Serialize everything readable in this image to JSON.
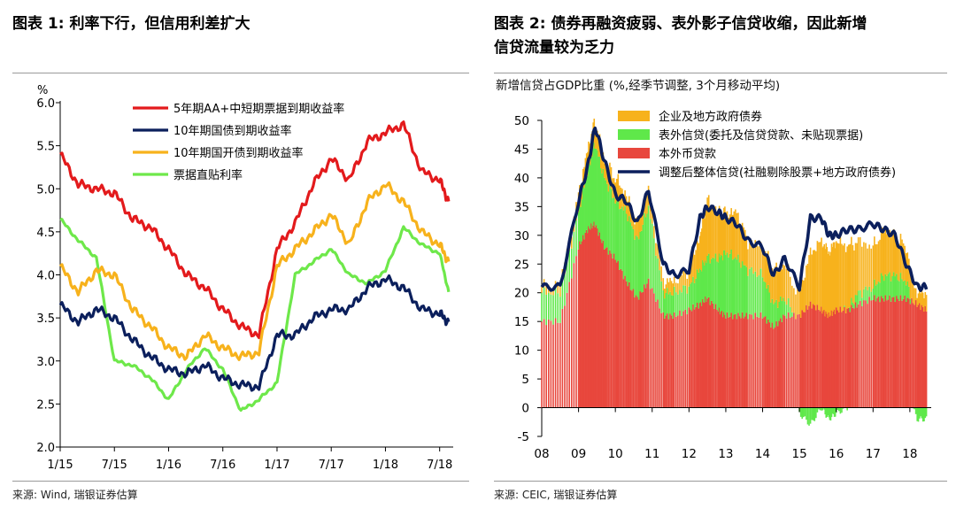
{
  "colors": {
    "red": "#e31a1c",
    "navy": "#0b1f5c",
    "orange": "#f7b21c",
    "green": "#6ee84a",
    "green_bar": "#5fe84a",
    "red_bar": "#e8473d"
  },
  "left": {
    "title": "图表 1: 利率下行，但信用利差扩大",
    "source": "来源: Wind, 瑞银证券估算",
    "chart_data": {
      "type": "line",
      "unit_label": "%",
      "ylim": [
        2.0,
        6.0
      ],
      "yticks": [
        "6.0",
        "5.5",
        "5.0",
        "4.5",
        "4.0",
        "3.5",
        "3.0",
        "2.5",
        "2.0"
      ],
      "xticks": [
        "1/15",
        "7/15",
        "1/16",
        "7/16",
        "1/17",
        "7/17",
        "1/18",
        "7/18"
      ],
      "x_months": [
        "2015-01",
        "2015-03",
        "2015-05",
        "2015-07",
        "2015-09",
        "2015-11",
        "2016-01",
        "2016-03",
        "2016-05",
        "2016-07",
        "2016-09",
        "2016-11",
        "2017-01",
        "2017-03",
        "2017-05",
        "2017-07",
        "2017-09",
        "2017-11",
        "2018-01",
        "2018-03",
        "2018-05",
        "2018-07",
        "2018-08"
      ],
      "series": [
        {
          "name": "5年期AA+中短期票据到期收益率",
          "color": "#e31a1c",
          "values": [
            5.4,
            5.05,
            5.0,
            4.95,
            4.65,
            4.55,
            4.3,
            4.0,
            3.85,
            3.6,
            3.4,
            3.3,
            4.3,
            4.6,
            5.05,
            5.35,
            5.1,
            5.55,
            5.65,
            5.75,
            5.2,
            5.1,
            4.85
          ]
        },
        {
          "name": "10年期国债到期收益率",
          "color": "#0b1f5c",
          "values": [
            3.65,
            3.45,
            3.6,
            3.5,
            3.25,
            3.05,
            2.9,
            2.85,
            2.95,
            2.8,
            2.72,
            2.7,
            3.3,
            3.3,
            3.5,
            3.6,
            3.6,
            3.85,
            3.95,
            3.85,
            3.6,
            3.55,
            3.45
          ]
        },
        {
          "name": "10年期国开债到期收益率",
          "color": "#f7b21c",
          "values": [
            4.1,
            3.8,
            4.05,
            4.0,
            3.6,
            3.4,
            3.15,
            3.05,
            3.3,
            3.15,
            3.05,
            3.1,
            4.1,
            4.3,
            4.5,
            4.7,
            4.35,
            4.85,
            5.05,
            4.85,
            4.5,
            4.35,
            4.15
          ]
        },
        {
          "name": "票据直贴利率",
          "color": "#6ee84a",
          "values": [
            4.65,
            4.4,
            4.2,
            3.0,
            2.95,
            2.8,
            2.55,
            2.9,
            3.15,
            2.9,
            2.42,
            2.55,
            2.75,
            4.0,
            4.15,
            4.3,
            4.0,
            3.9,
            4.05,
            4.55,
            4.35,
            4.25,
            3.8
          ]
        }
      ]
    }
  },
  "right": {
    "title_line1": "图表 2: 债券再融资疲弱、表外影子信贷收缩，因此新增",
    "title_line2": "信贷流量较为乏力",
    "subtitle": "新增信贷占GDP比重 (%,经季节调整, 3个月移动平均)",
    "source": "来源: CEIC, 瑞银证券估算",
    "chart_data": {
      "type": "bar",
      "ylim": [
        -5,
        50
      ],
      "yticks": [
        "50",
        "45",
        "40",
        "35",
        "30",
        "25",
        "20",
        "15",
        "10",
        "5",
        "0",
        "-5"
      ],
      "xticks": [
        "08",
        "09",
        "10",
        "11",
        "12",
        "13",
        "14",
        "15",
        "16",
        "17",
        "18"
      ],
      "x_year_start": 2008,
      "x_year_end": 2018.58,
      "x_points": [
        2008.0,
        2008.5,
        2009.0,
        2009.25,
        2009.45,
        2009.7,
        2010.0,
        2010.3,
        2010.6,
        2010.9,
        2011.3,
        2011.6,
        2012.0,
        2012.3,
        2012.5,
        2012.8,
        2013.0,
        2013.3,
        2013.6,
        2014.0,
        2014.3,
        2014.6,
        2015.0,
        2015.3,
        2015.6,
        2015.8,
        2016.0,
        2016.3,
        2016.6,
        2017.0,
        2017.3,
        2017.6,
        2017.9,
        2018.2,
        2018.45
      ],
      "series": [
        {
          "name": "企业及地方政府债券",
          "color": "#f7b21c",
          "values": [
            1,
            1.5,
            3,
            4,
            4,
            3,
            4,
            3,
            3,
            3,
            2,
            2,
            3,
            6,
            10,
            8,
            7,
            8,
            5,
            5,
            6,
            6,
            4,
            9,
            12,
            11,
            12,
            11,
            9,
            7,
            8,
            7,
            6,
            2,
            3
          ]
        },
        {
          "name": "表外信贷(委托及信贷贷款、未贴现票据)",
          "color": "#5fe84a",
          "values": [
            5,
            5,
            6,
            10,
            14,
            12,
            10,
            12,
            10,
            13,
            4,
            4,
            4,
            6,
            7,
            9,
            11,
            10,
            8,
            7,
            4,
            3,
            -1,
            -3,
            0,
            -2,
            -1,
            0,
            2,
            2,
            4,
            4,
            3,
            -2,
            -2
          ]
        },
        {
          "name": "本外币贷款",
          "color": "#e8473d",
          "values": [
            15,
            15,
            28,
            31,
            32,
            28,
            26,
            22,
            19,
            22,
            16,
            16,
            17,
            18,
            19,
            17,
            16,
            16,
            16,
            16,
            14,
            16,
            16,
            18,
            17,
            16,
            17,
            17,
            18,
            19,
            19,
            19,
            19,
            18,
            17
          ]
        },
        {
          "name": "调整后整体信贷(社融剔除股票+地方政府债券)",
          "color": "#0b1f5c",
          "values": [
            21,
            21,
            36,
            42,
            49,
            43,
            37,
            36,
            32,
            38,
            25,
            23,
            24,
            33,
            35,
            34,
            33,
            32,
            29,
            28,
            23,
            26,
            21,
            33,
            33,
            30,
            30,
            31,
            31,
            32,
            31,
            30,
            25,
            21,
            21
          ]
        }
      ]
    }
  }
}
